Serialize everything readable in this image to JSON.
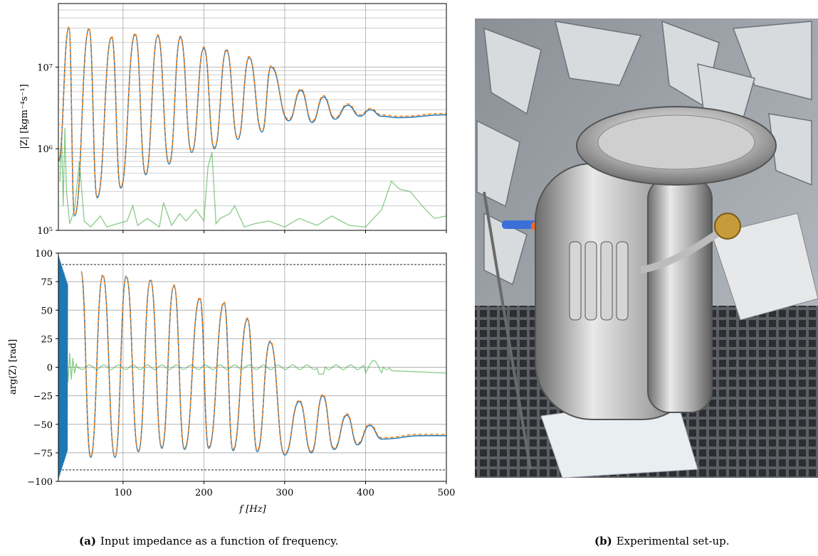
{
  "figure": {
    "panel_a": {
      "label": "(a)",
      "caption": "Input impedance as a function of frequency."
    },
    "panel_b": {
      "label": "(b)",
      "caption": "Experimental set-up."
    }
  },
  "chart_data": [
    {
      "type": "line",
      "scale": "log-y",
      "ylabel": "|Z| [kgm⁻⁴s⁻¹]",
      "ylim": [
        100000,
        60000000
      ],
      "xlim": [
        20,
        500
      ],
      "x_ticks": [
        100,
        200,
        300,
        400,
        500
      ],
      "y_ticks": [
        "10⁵",
        "10⁶",
        "10⁷"
      ],
      "grid": true,
      "series": [
        {
          "color": "#1f77b4",
          "style": "solid",
          "peaks": [
            {
              "f": 33,
              "v": 30000000
            },
            {
              "f": 58,
              "v": 29000000
            },
            {
              "f": 86,
              "v": 23000000
            },
            {
              "f": 115,
              "v": 25000000
            },
            {
              "f": 143,
              "v": 24000000
            },
            {
              "f": 171,
              "v": 23000000
            },
            {
              "f": 200,
              "v": 17000000
            },
            {
              "f": 228,
              "v": 16000000
            },
            {
              "f": 256,
              "v": 13000000
            },
            {
              "f": 283,
              "v": 10000000
            },
            {
              "f": 320,
              "v": 5200000
            },
            {
              "f": 348,
              "v": 4300000
            },
            {
              "f": 378,
              "v": 3400000
            },
            {
              "f": 406,
              "v": 3000000
            }
          ],
          "troughs": [
            {
              "f": 20,
              "v": 700000
            },
            {
              "f": 40,
              "v": 150000
            },
            {
              "f": 68,
              "v": 250000
            },
            {
              "f": 97,
              "v": 330000
            },
            {
              "f": 128,
              "v": 480000
            },
            {
              "f": 157,
              "v": 650000
            },
            {
              "f": 185,
              "v": 900000
            },
            {
              "f": 213,
              "v": 1000000
            },
            {
              "f": 242,
              "v": 1300000
            },
            {
              "f": 272,
              "v": 1600000
            },
            {
              "f": 305,
              "v": 2200000
            },
            {
              "f": 334,
              "v": 2100000
            },
            {
              "f": 362,
              "v": 2300000
            },
            {
              "f": 393,
              "v": 2500000
            },
            {
              "f": 420,
              "v": 2500000
            },
            {
              "f": 440,
              "v": 2400000
            }
          ],
          "tail": {
            "f": 500,
            "v": 2600000
          }
        },
        {
          "color": "#ff7f0e",
          "style": "dashed",
          "tail": {
            "f": 500,
            "v": 2700000
          }
        },
        {
          "color": "#2ca02c",
          "style": "solid",
          "note_values_approx": true
        }
      ]
    },
    {
      "type": "line",
      "ylabel": "arg(Z) [rad]",
      "xlabel": "f [Hz]",
      "xlim": [
        20,
        500
      ],
      "ylim": [
        -100,
        100
      ],
      "x_ticks": [
        100,
        200,
        300,
        400,
        500
      ],
      "y_ticks": [
        -100,
        -75,
        -50,
        -25,
        0,
        25,
        50,
        75,
        100
      ],
      "reference_lines": [
        90,
        -90
      ],
      "grid": true,
      "series": [
        {
          "color": "#1f77b4",
          "style": "solid",
          "peaks": [
            {
              "f": 48,
              "v": 83
            },
            {
              "f": 75,
              "v": 80
            },
            {
              "f": 104,
              "v": 79
            },
            {
              "f": 134,
              "v": 76
            },
            {
              "f": 163,
              "v": 71
            },
            {
              "f": 195,
              "v": 60
            },
            {
              "f": 225,
              "v": 56
            },
            {
              "f": 254,
              "v": 42
            },
            {
              "f": 282,
              "v": 22
            },
            {
              "f": 318,
              "v": -30
            },
            {
              "f": 347,
              "v": -25
            },
            {
              "f": 377,
              "v": -42
            },
            {
              "f": 405,
              "v": -51
            }
          ],
          "troughs": [
            {
              "f": 60,
              "v": -79
            },
            {
              "f": 90,
              "v": -79
            },
            {
              "f": 119,
              "v": -74
            },
            {
              "f": 148,
              "v": -71
            },
            {
              "f": 176,
              "v": -72
            },
            {
              "f": 206,
              "v": -71
            },
            {
              "f": 236,
              "v": -73
            },
            {
              "f": 266,
              "v": -74
            },
            {
              "f": 300,
              "v": -77
            },
            {
              "f": 333,
              "v": -75
            },
            {
              "f": 361,
              "v": -72
            },
            {
              "f": 390,
              "v": -68
            },
            {
              "f": 420,
              "v": -63
            },
            {
              "f": 470,
              "v": -60
            }
          ],
          "tail": {
            "f": 500,
            "v": -60
          }
        },
        {
          "color": "#ff7f0e",
          "style": "dashed",
          "tail": {
            "f": 500,
            "v": -63
          }
        },
        {
          "color": "#2ca02c",
          "style": "solid",
          "note_values_approx": true
        }
      ]
    }
  ]
}
